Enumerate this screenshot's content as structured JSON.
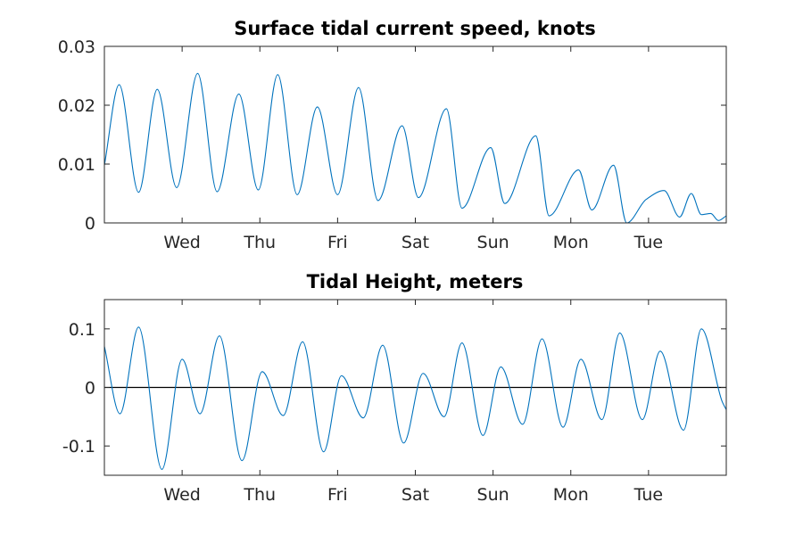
{
  "chart_data": [
    {
      "type": "line",
      "title": "Surface tidal current speed, knots",
      "xlabel": "",
      "ylabel": "",
      "grid": false,
      "xlim": [
        0,
        8
      ],
      "ylim": [
        0,
        0.03
      ],
      "x_ticks": [
        {
          "value": 1,
          "label": "Wed"
        },
        {
          "value": 2,
          "label": "Thu"
        },
        {
          "value": 3,
          "label": "Fri"
        },
        {
          "value": 4,
          "label": "Sat"
        },
        {
          "value": 5,
          "label": "Sun"
        },
        {
          "value": 6,
          "label": "Mon"
        },
        {
          "value": 7,
          "label": "Tue"
        }
      ],
      "y_ticks": [
        {
          "value": 0,
          "label": "0"
        },
        {
          "value": 0.01,
          "label": "0.01"
        },
        {
          "value": 0.02,
          "label": "0.02"
        },
        {
          "value": 0.03,
          "label": "0.03"
        }
      ],
      "colors": {
        "line": "#0072BD"
      },
      "series": [
        {
          "x": [
            0.0,
            0.19,
            0.44,
            0.68,
            0.93,
            1.2,
            1.45,
            1.73,
            1.98,
            2.23,
            2.48,
            2.74,
            3.0,
            3.27,
            3.52,
            3.83,
            4.04,
            4.4,
            4.6,
            4.97,
            5.15,
            5.55,
            5.72,
            6.1,
            6.27,
            6.55,
            6.72,
            6.97,
            7.2,
            7.4,
            7.55,
            7.68,
            7.8,
            7.9,
            8.0
          ],
          "y": [
            0.0098,
            0.0235,
            0.0052,
            0.0227,
            0.006,
            0.0254,
            0.0053,
            0.0219,
            0.0056,
            0.0252,
            0.0048,
            0.0197,
            0.0048,
            0.023,
            0.0038,
            0.0165,
            0.0043,
            0.0194,
            0.0025,
            0.0128,
            0.0033,
            0.0148,
            0.0012,
            0.009,
            0.0022,
            0.0098,
            0.0,
            0.004,
            0.0055,
            0.001,
            0.005,
            0.0014,
            0.0016,
            0.0004,
            0.0012
          ]
        }
      ]
    },
    {
      "type": "line",
      "title": "Tidal Height, meters",
      "xlabel": "",
      "ylabel": "",
      "grid": false,
      "xlim": [
        0,
        8
      ],
      "ylim": [
        -0.15,
        0.15
      ],
      "x_ticks": [
        {
          "value": 1,
          "label": "Wed"
        },
        {
          "value": 2,
          "label": "Thu"
        },
        {
          "value": 3,
          "label": "Fri"
        },
        {
          "value": 4,
          "label": "Sat"
        },
        {
          "value": 5,
          "label": "Sun"
        },
        {
          "value": 6,
          "label": "Mon"
        },
        {
          "value": 7,
          "label": "Tue"
        }
      ],
      "y_ticks": [
        {
          "value": -0.1,
          "label": "-0.1"
        },
        {
          "value": 0,
          "label": "0"
        },
        {
          "value": 0.1,
          "label": "0.1"
        }
      ],
      "reference_line": {
        "y": 0,
        "color": "#000000"
      },
      "colors": {
        "line": "#0072BD"
      },
      "series": [
        {
          "x": [
            0.0,
            0.2,
            0.44,
            0.74,
            1.0,
            1.23,
            1.48,
            1.77,
            2.03,
            2.3,
            2.55,
            2.82,
            3.05,
            3.33,
            3.58,
            3.85,
            4.1,
            4.37,
            4.6,
            4.87,
            5.1,
            5.38,
            5.63,
            5.9,
            6.13,
            6.4,
            6.63,
            6.92,
            7.15,
            7.45,
            7.68,
            7.95,
            8.0
          ],
          "y": [
            0.07,
            -0.045,
            0.103,
            -0.14,
            0.048,
            -0.045,
            0.088,
            -0.125,
            0.027,
            -0.048,
            0.078,
            -0.11,
            0.02,
            -0.052,
            0.072,
            -0.095,
            0.024,
            -0.05,
            0.076,
            -0.082,
            0.035,
            -0.063,
            0.083,
            -0.068,
            0.048,
            -0.055,
            0.093,
            -0.055,
            0.062,
            -0.073,
            0.1,
            -0.025,
            -0.038
          ]
        }
      ]
    }
  ]
}
